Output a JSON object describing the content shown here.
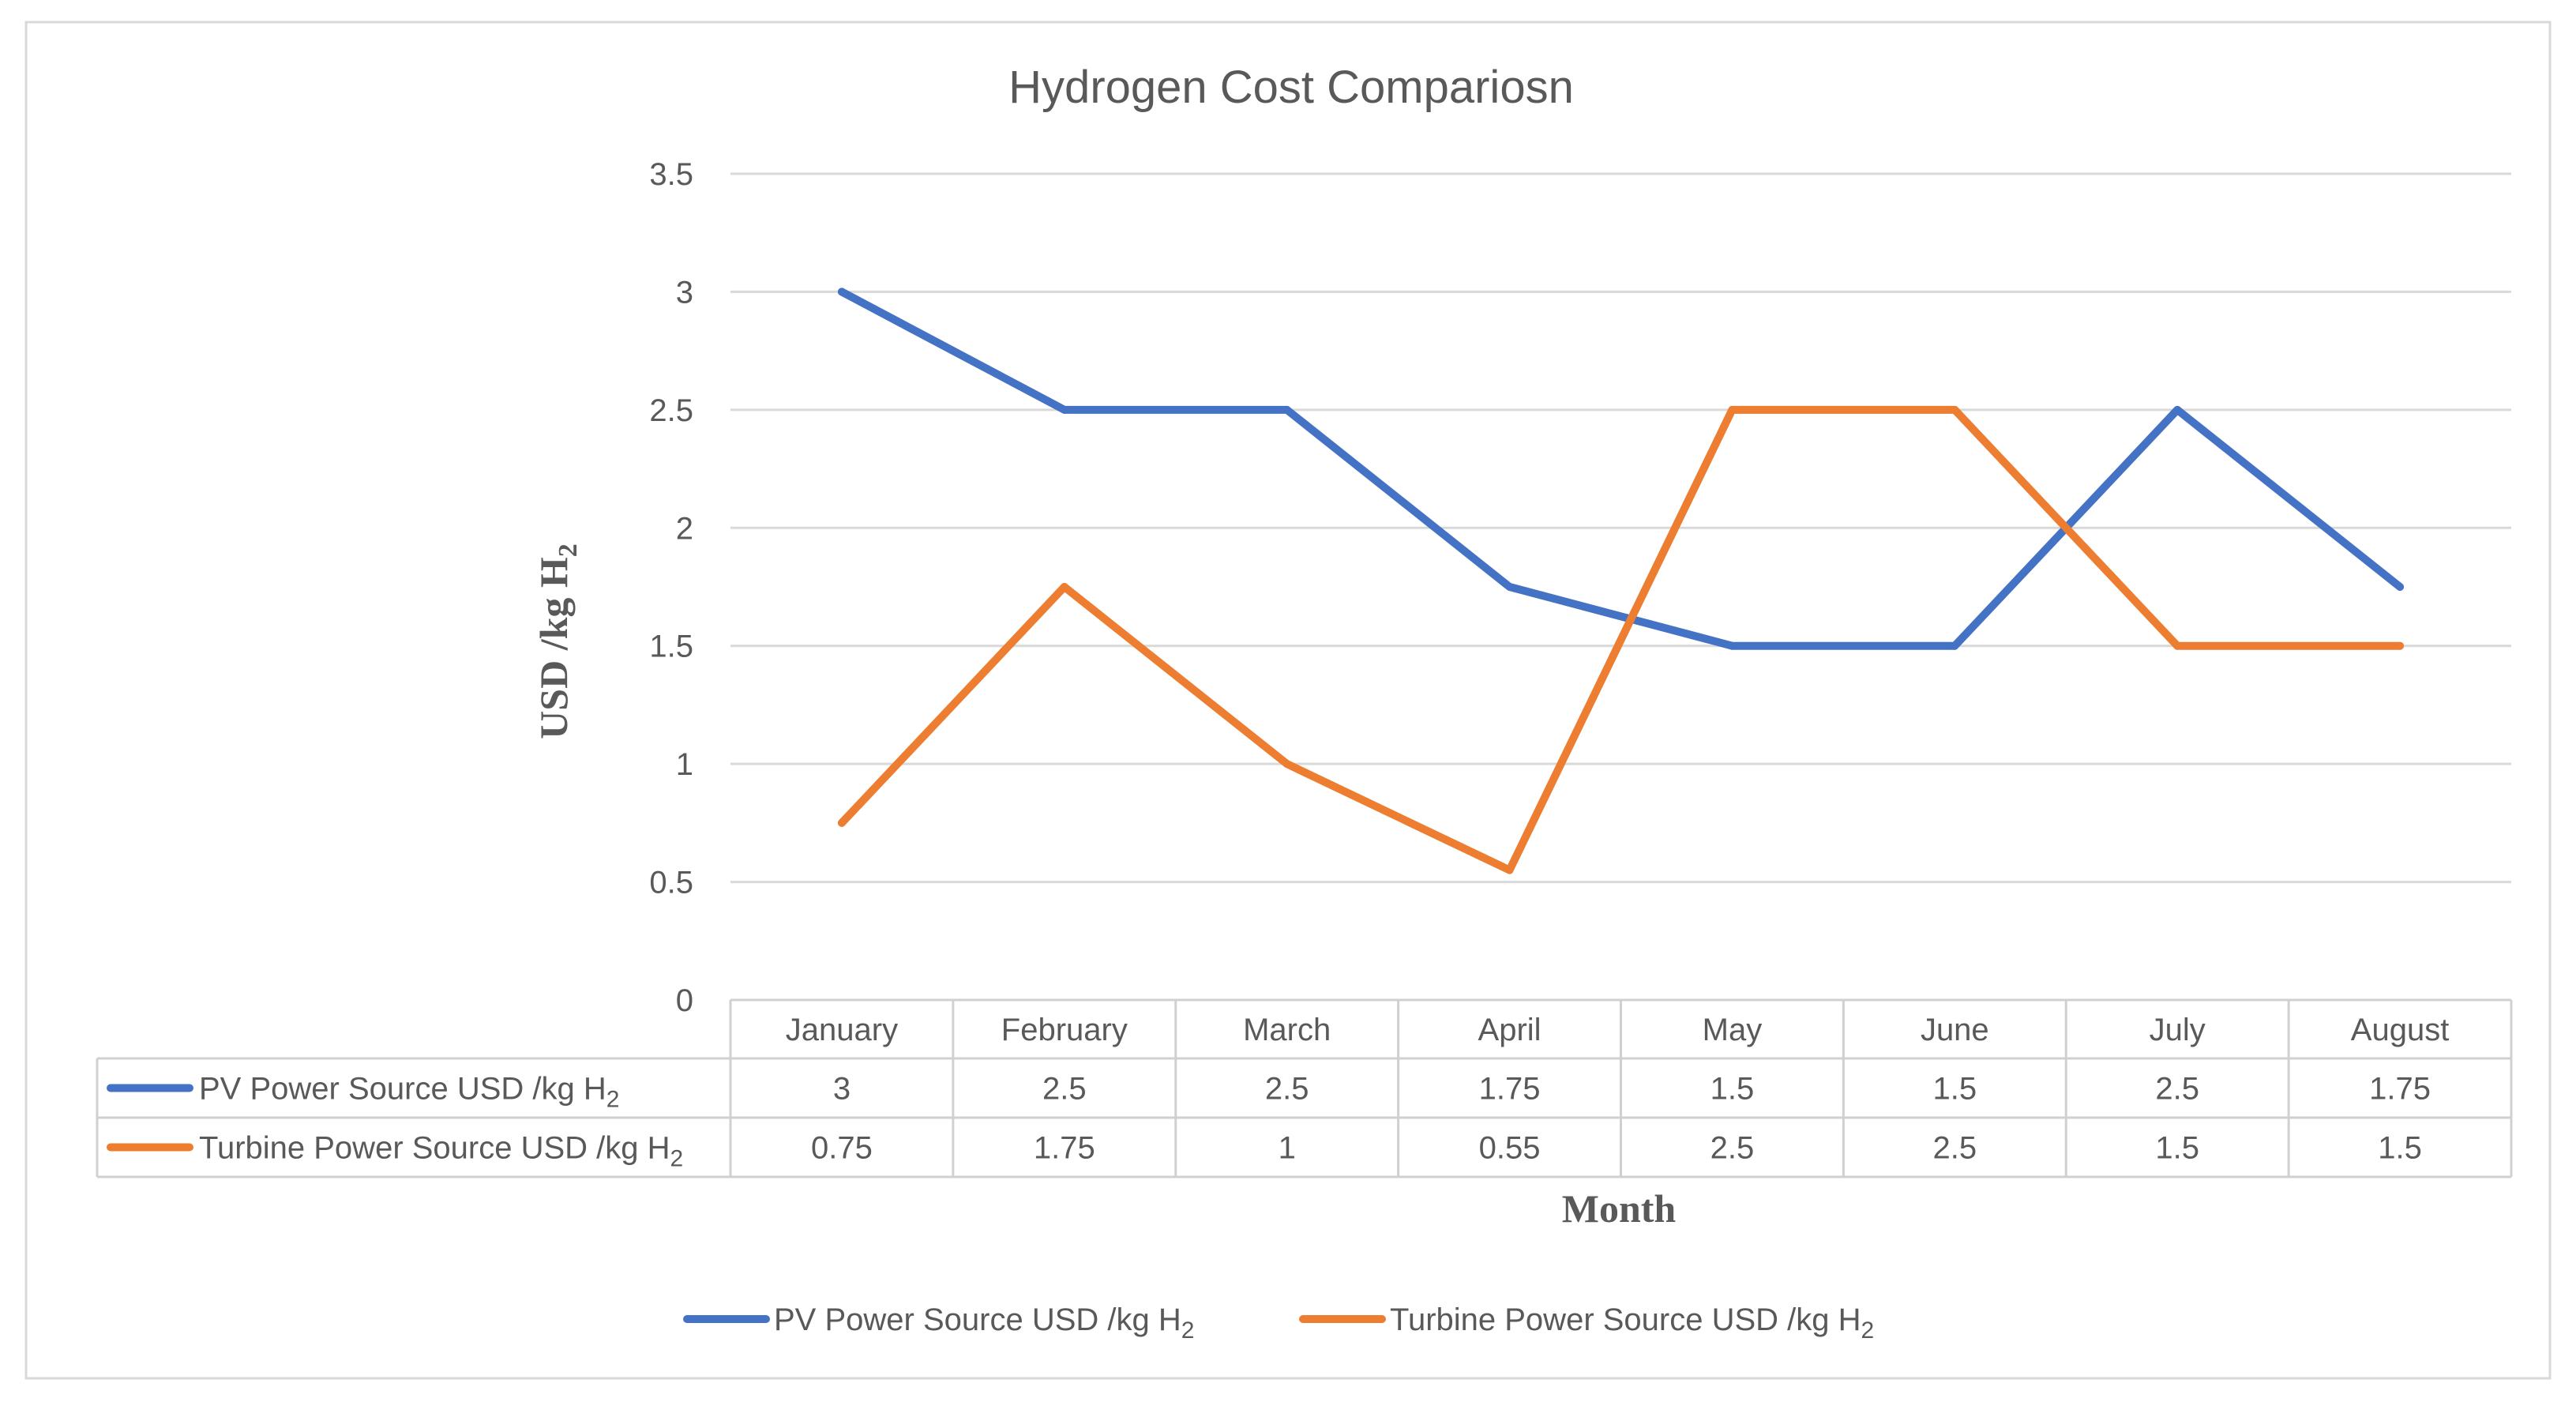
{
  "chart_data": {
    "type": "line",
    "title": "Hydrogen Cost Compariosn",
    "xlabel": "Month",
    "ylabel": "USD /kg H",
    "ylabel_subscript": "2",
    "ylim": [
      0,
      3.5
    ],
    "yticks": [
      "0",
      "0.5",
      "1",
      "1.5",
      "2",
      "2.5",
      "3",
      "3.5"
    ],
    "grid": true,
    "legend_position": "bottom",
    "data_table": true,
    "categories": [
      "January",
      "February",
      "March",
      "April",
      "May",
      "June",
      "July",
      "August"
    ],
    "series": [
      {
        "name": "PV Power Source USD /kg H",
        "name_subscript": "2",
        "color": "#4472c4",
        "values": [
          3,
          2.5,
          2.5,
          1.75,
          1.5,
          1.5,
          2.5,
          1.75
        ],
        "labels": [
          "3",
          "2.5",
          "2.5",
          "1.75",
          "1.5",
          "1.5",
          "2.5",
          "1.75"
        ]
      },
      {
        "name": "Turbine Power Source USD /kg H",
        "name_subscript": "2",
        "color": "#ed7d31",
        "values": [
          0.75,
          1.75,
          1,
          0.55,
          2.5,
          2.5,
          1.5,
          1.5
        ],
        "labels": [
          "0.75",
          "1.75",
          "1",
          "0.55",
          "2.5",
          "2.5",
          "1.5",
          "1.5"
        ]
      }
    ]
  }
}
